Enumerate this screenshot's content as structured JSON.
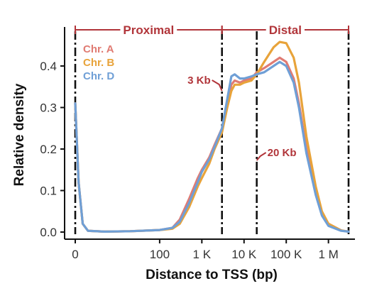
{
  "chart_data": {
    "type": "line",
    "xlabel": "Distance to TSS (bp)",
    "ylabel": "Relative density",
    "x_scale": "log",
    "ylim": [
      0,
      0.48
    ],
    "y_ticks": [
      {
        "value": 0.0,
        "label": "0.0"
      },
      {
        "value": 0.1,
        "label": "0.1"
      },
      {
        "value": 0.2,
        "label": "0.2"
      },
      {
        "value": 0.3,
        "label": "0.3"
      },
      {
        "value": 0.4,
        "label": "0.4"
      }
    ],
    "x_ticks": [
      {
        "value": 1,
        "label": "0"
      },
      {
        "value": 100,
        "label": "100"
      },
      {
        "value": 1000,
        "label": "1 K"
      },
      {
        "value": 10000,
        "label": "10 K"
      },
      {
        "value": 100000,
        "label": "100 K"
      },
      {
        "value": 1000000,
        "label": "1 M"
      }
    ],
    "grid": false,
    "legend_position": "top-left",
    "regions": [
      {
        "label": "Proximal",
        "from": 1,
        "to": 3000
      },
      {
        "label": "Distal",
        "from": 3000,
        "to": 3000000
      }
    ],
    "boundaries": [
      1,
      3000,
      20000,
      3000000
    ],
    "annotations": [
      {
        "label": "3 Kb",
        "x": 3000,
        "y": 0.36
      },
      {
        "label": "20 Kb",
        "x": 20000,
        "y": 0.19
      }
    ],
    "series": [
      {
        "name": "Chr. A",
        "color": "#e07b73",
        "x": [
          1,
          1.2,
          1.5,
          2,
          5,
          20,
          100,
          200,
          300,
          500,
          800,
          1000,
          1500,
          2000,
          3000,
          4000,
          5000,
          6000,
          8000,
          10000,
          15000,
          20000,
          30000,
          50000,
          70000,
          100000,
          150000,
          200000,
          300000,
          500000,
          700000,
          1000000,
          2000000,
          3000000
        ],
        "values": [
          0.31,
          0.12,
          0.02,
          0.003,
          0.001,
          0.002,
          0.005,
          0.01,
          0.03,
          0.08,
          0.13,
          0.15,
          0.18,
          0.21,
          0.25,
          0.31,
          0.355,
          0.365,
          0.36,
          0.365,
          0.37,
          0.385,
          0.395,
          0.41,
          0.42,
          0.41,
          0.37,
          0.31,
          0.2,
          0.1,
          0.045,
          0.02,
          0.004,
          0.001
        ]
      },
      {
        "name": "Chr. B",
        "color": "#e8a33a",
        "x": [
          1,
          1.2,
          1.5,
          2,
          5,
          20,
          100,
          200,
          300,
          500,
          800,
          1000,
          1500,
          2000,
          3000,
          4000,
          5000,
          6000,
          8000,
          10000,
          15000,
          20000,
          30000,
          50000,
          70000,
          100000,
          150000,
          200000,
          300000,
          500000,
          700000,
          1000000,
          2000000,
          3000000
        ],
        "values": [
          0.31,
          0.12,
          0.02,
          0.003,
          0.001,
          0.002,
          0.005,
          0.008,
          0.02,
          0.06,
          0.11,
          0.13,
          0.165,
          0.2,
          0.24,
          0.3,
          0.34,
          0.355,
          0.355,
          0.36,
          0.365,
          0.38,
          0.41,
          0.445,
          0.458,
          0.455,
          0.42,
          0.36,
          0.23,
          0.11,
          0.05,
          0.02,
          0.004,
          0.001
        ]
      },
      {
        "name": "Chr. D",
        "color": "#6f9fd6",
        "x": [
          1,
          1.2,
          1.5,
          2,
          5,
          20,
          100,
          200,
          300,
          500,
          800,
          1000,
          1500,
          2000,
          3000,
          4000,
          5000,
          6000,
          8000,
          10000,
          15000,
          20000,
          30000,
          50000,
          70000,
          100000,
          150000,
          200000,
          300000,
          500000,
          700000,
          1000000,
          2000000,
          3000000
        ],
        "values": [
          0.31,
          0.12,
          0.02,
          0.003,
          0.001,
          0.002,
          0.005,
          0.01,
          0.025,
          0.07,
          0.12,
          0.145,
          0.175,
          0.205,
          0.25,
          0.32,
          0.375,
          0.38,
          0.37,
          0.37,
          0.375,
          0.38,
          0.385,
          0.4,
          0.41,
          0.4,
          0.36,
          0.3,
          0.19,
          0.09,
          0.04,
          0.015,
          0.003,
          0.001
        ]
      }
    ]
  }
}
